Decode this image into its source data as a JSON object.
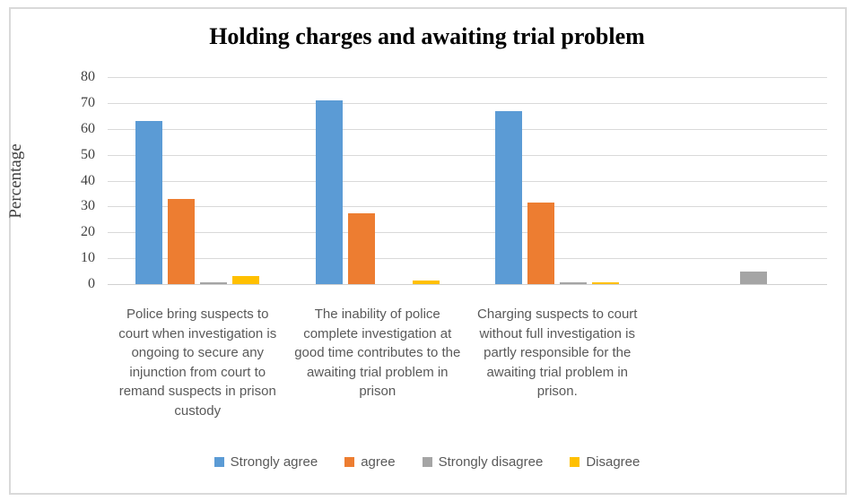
{
  "title": "Holding charges and awaiting trial problem",
  "colors": {
    "strongly_agree": "#5B9BD5",
    "agree": "#ED7D31",
    "strongly_disagree": "#A5A5A5",
    "disagree": "#FFC000",
    "gridline": "#D9D9D9",
    "axis_text": "#404040",
    "category_text": "#595959"
  },
  "chart_data": {
    "type": "bar",
    "title": "Holding charges and awaiting trial problem",
    "xlabel": "",
    "ylabel": "Percentage",
    "ylim": [
      0,
      80
    ],
    "yticks": [
      0,
      10,
      20,
      30,
      40,
      50,
      60,
      70,
      80
    ],
    "grid": true,
    "legend_position": "bottom",
    "categories": [
      "Police bring suspects to court when investigation is ongoing to secure any injunction from court to remand suspects in prison custody",
      "The inability of police complete investigation at good time contributes to the awaiting trial problem in prison",
      "Charging suspects to court without full investigation is partly responsible for the awaiting trial problem in prison.",
      ""
    ],
    "series": [
      {
        "name": "Strongly agree",
        "color": "#5B9BD5",
        "values": [
          63,
          71,
          67,
          0
        ]
      },
      {
        "name": "agree",
        "color": "#ED7D31",
        "values": [
          33,
          27.5,
          31.5,
          0
        ]
      },
      {
        "name": "Strongly disagree",
        "color": "#A5A5A5",
        "values": [
          0.7,
          0,
          0.7,
          5
        ]
      },
      {
        "name": "Disagree",
        "color": "#FFC000",
        "values": [
          3,
          1.5,
          0.7,
          0
        ]
      }
    ]
  }
}
